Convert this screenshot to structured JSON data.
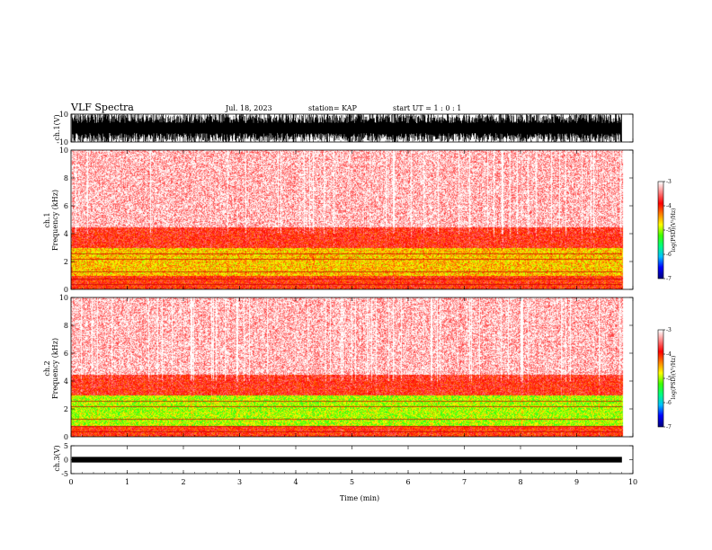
{
  "header": {
    "title": "VLF Spectra",
    "date": "Jul. 18, 2023",
    "station": "station= KAP",
    "start": "start  UT =  1 : 0  : 1"
  },
  "axes": {
    "xlabel": "Time  (min)",
    "ch1_wave_label": "ch.1(V)",
    "ch3_wave_label": "ch.3(V)",
    "spec1_label": "ch.1",
    "spec2_label": "ch.2",
    "freq_label": "Frequency (kHz)",
    "colorbar_label": "log(PSD)(V²/Hz)"
  },
  "chart_data": [
    {
      "type": "line",
      "name": "ch.1 waveform",
      "ylabel": "ch.1(V)",
      "xlim": [
        0,
        10
      ],
      "ylim": [
        -10,
        10
      ],
      "yticks": [
        "10",
        "-10"
      ],
      "data_extent_min": 9.8,
      "amplitude_range": [
        -10,
        10
      ]
    },
    {
      "type": "heatmap",
      "name": "ch.1 spectrogram",
      "ylabel": "Frequency (kHz)",
      "xlim": [
        0,
        10
      ],
      "ylim": [
        0,
        10
      ],
      "xticks": [
        0,
        1,
        2,
        3,
        4,
        5,
        6,
        7,
        8,
        9,
        10
      ],
      "yticks": [
        0,
        2,
        4,
        6,
        8,
        10
      ],
      "data_extent_min": 9.8,
      "colorbar": {
        "label": "log(PSD)(V²/Hz)",
        "range": [
          -7,
          -3
        ],
        "ticks": [
          "-3",
          "-4",
          "-5",
          "-6",
          "-7"
        ]
      },
      "bands_khz": [
        {
          "from": 0.0,
          "to": 1.0,
          "level": -4.0
        },
        {
          "from": 1.0,
          "to": 3.0,
          "level": -4.6
        },
        {
          "from": 3.0,
          "to": 4.5,
          "level": -3.9
        },
        {
          "from": 4.5,
          "to": 10.0,
          "level": -3.3
        }
      ]
    },
    {
      "type": "heatmap",
      "name": "ch.2 spectrogram",
      "ylabel": "Frequency (kHz)",
      "xlim": [
        0,
        10
      ],
      "ylim": [
        0,
        10
      ],
      "xticks": [
        0,
        1,
        2,
        3,
        4,
        5,
        6,
        7,
        8,
        9,
        10
      ],
      "yticks": [
        0,
        2,
        4,
        6,
        8,
        10
      ],
      "data_extent_min": 9.8,
      "colorbar": {
        "label": "log(PSD)(V²/Hz)",
        "range": [
          -7,
          -3
        ],
        "ticks": [
          "-3",
          "-4",
          "-5",
          "-6",
          "-7"
        ]
      },
      "bands_khz": [
        {
          "from": 0.0,
          "to": 0.8,
          "level": -4.0
        },
        {
          "from": 0.8,
          "to": 3.0,
          "level": -5.0
        },
        {
          "from": 3.0,
          "to": 4.5,
          "level": -3.9
        },
        {
          "from": 4.5,
          "to": 10.0,
          "level": -3.3
        }
      ]
    },
    {
      "type": "line",
      "name": "ch.3 waveform",
      "ylabel": "ch.3(V)",
      "xlim": [
        0,
        10
      ],
      "ylim": [
        -5,
        5
      ],
      "yticks": [
        "5",
        "0",
        "-5"
      ],
      "data_extent_min": 9.8,
      "amplitude_range": [
        -1,
        1
      ]
    }
  ],
  "colors": {
    "colormap": [
      "#000080",
      "#0000ff",
      "#00c0ff",
      "#00ff80",
      "#40ff00",
      "#ffff00",
      "#ff8000",
      "#ff0000",
      "#ff8080",
      "#ffffff"
    ],
    "text": "#000000",
    "axis": "#000000"
  }
}
